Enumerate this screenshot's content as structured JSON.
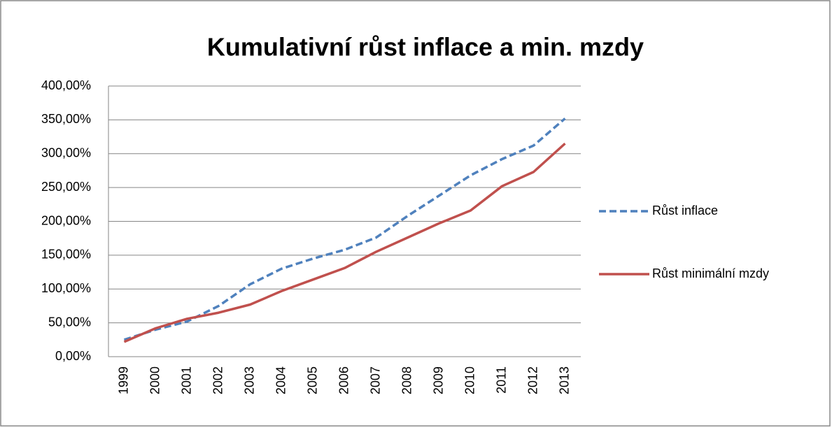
{
  "chart_data": {
    "type": "line",
    "title": "Kumulativní růst inflace a min. mzdy",
    "categories": [
      "1999",
      "2000",
      "2001",
      "2002",
      "2003",
      "2004",
      "2005",
      "2006",
      "2007",
      "2008",
      "2009",
      "2010",
      "2011",
      "2012",
      "2013"
    ],
    "series": [
      {
        "name": "Růst inflace",
        "color": "#4f81bd",
        "dash": true,
        "values": [
          25,
          40,
          52,
          75,
          107,
          130,
          145,
          158,
          176,
          208,
          238,
          268,
          292,
          312,
          352
        ]
      },
      {
        "name": "Růst minimální mzdy",
        "color": "#c0504d",
        "dash": false,
        "values": [
          22,
          42,
          56,
          65,
          77,
          97,
          114,
          131,
          155,
          176,
          197,
          216,
          252,
          273,
          315
        ]
      }
    ],
    "ylim": [
      0,
      400
    ],
    "yticks": [
      {
        "value": 0,
        "label": "0,00%"
      },
      {
        "value": 50,
        "label": "50,00%"
      },
      {
        "value": 100,
        "label": "100,00%"
      },
      {
        "value": 150,
        "label": "150,00%"
      },
      {
        "value": 200,
        "label": "200,00%"
      },
      {
        "value": 250,
        "label": "250,00%"
      },
      {
        "value": 300,
        "label": "300,00%"
      },
      {
        "value": 350,
        "label": "350,00%"
      },
      {
        "value": 400,
        "label": "400,00%"
      }
    ],
    "grid": true,
    "legend": "right"
  }
}
